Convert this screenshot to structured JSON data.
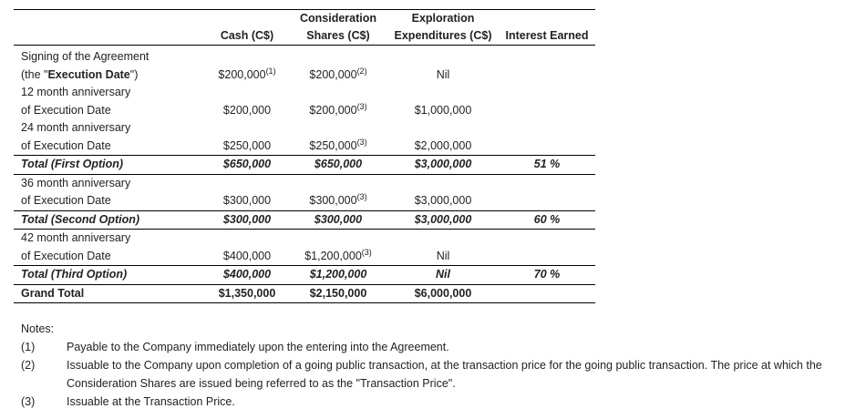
{
  "table": {
    "header": {
      "cash": "Cash (C$)",
      "shares": [
        "Consideration",
        "Shares (C$)"
      ],
      "exploration": [
        "Exploration",
        "Expenditures (C$)"
      ],
      "interest": "Interest Earned"
    },
    "rows": [
      {
        "label": [
          "Signing of the Agreement",
          "(the \"",
          "Execution Date",
          "\")"
        ],
        "cash": {
          "text": "$200,000",
          "sup": "(1)"
        },
        "shares": {
          "text": "$200,000",
          "sup": "(2)"
        },
        "exploration": "Nil"
      },
      {
        "label": [
          "12 month anniversary",
          "of Execution Date"
        ],
        "cash": "$200,000",
        "shares": {
          "text": "$200,000",
          "sup": "(3)"
        },
        "exploration": "$1,000,000"
      },
      {
        "label": [
          "24 month anniversary",
          "of Execution Date"
        ],
        "cash": "$250,000",
        "shares": {
          "text": "$250,000",
          "sup": "(3)"
        },
        "exploration": "$2,000,000"
      },
      {
        "label": [
          "Total (First Option)"
        ],
        "cash": "$650,000",
        "shares": "$650,000",
        "exploration": "$3,000,000",
        "interest": "51 %"
      },
      {
        "label": [
          "36 month anniversary",
          "of Execution Date"
        ],
        "cash": "$300,000",
        "shares": {
          "text": "$300,000",
          "sup": "(3)"
        },
        "exploration": "$3,000,000"
      },
      {
        "label": [
          "Total (Second Option)"
        ],
        "cash": "$300,000",
        "shares": "$300,000",
        "exploration": "$3,000,000",
        "interest": "60 %"
      },
      {
        "label": [
          "42 month anniversary",
          "of Execution Date"
        ],
        "cash": "$400,000",
        "shares": {
          "text": "$1,200,000",
          "sup": "(3)"
        },
        "exploration": "Nil"
      },
      {
        "label": [
          "Total (Third Option)"
        ],
        "cash": "$400,000",
        "shares": "$1,200,000",
        "exploration": "Nil",
        "interest": "70 %"
      },
      {
        "label": [
          "Grand Total"
        ],
        "cash": "$1,350,000",
        "shares": "$2,150,000",
        "exploration": "$6,000,000"
      }
    ]
  },
  "notes": {
    "title": "Notes:",
    "items": [
      {
        "marker": "(1)",
        "text": "Payable to the Company immediately upon the entering into the Agreement."
      },
      {
        "marker": "(2)",
        "text": "Issuable to the Company upon completion of a going public transaction, at the transaction price for the going public transaction. The price at which the Consideration Shares are issued being referred to as the \"Transaction Price\"."
      },
      {
        "marker": "(3)",
        "text": "Issuable at the Transaction Price."
      }
    ]
  }
}
